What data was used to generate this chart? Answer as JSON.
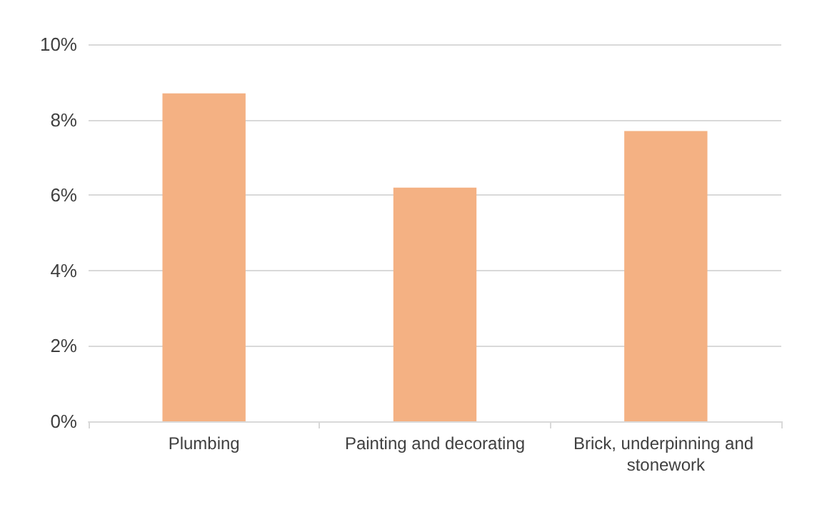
{
  "chart_data": {
    "type": "bar",
    "categories": [
      "Plumbing",
      "Painting and decorating",
      "Brick, underpinning and stonework"
    ],
    "values": [
      8.7,
      6.2,
      7.7
    ],
    "color": "#f4b183",
    "ylim": [
      0,
      10
    ],
    "yticks": [
      {
        "value": 0,
        "label": "0%"
      },
      {
        "value": 2,
        "label": "2%"
      },
      {
        "value": 4,
        "label": "4%"
      },
      {
        "value": 6,
        "label": "6%"
      },
      {
        "value": 8,
        "label": "8%"
      },
      {
        "value": 10,
        "label": "10%"
      }
    ],
    "grid": "y"
  }
}
